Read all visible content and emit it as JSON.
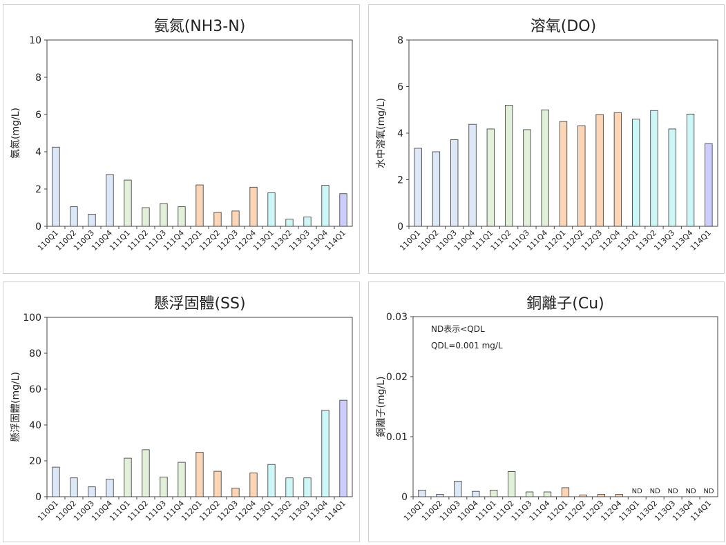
{
  "chart_data": [
    {
      "type": "bar",
      "title": "氨氮(NH3-N)",
      "ylabel": "氨氮(mg/L)",
      "ylim": [
        0,
        10
      ],
      "yticks": [
        "0",
        "2",
        "4",
        "6",
        "8",
        "10"
      ],
      "categories": [
        "110Q1",
        "110Q2",
        "110Q3",
        "110Q4",
        "111Q1",
        "111Q2",
        "111Q3",
        "111Q4",
        "112Q1",
        "112Q2",
        "112Q3",
        "112Q4",
        "113Q1",
        "113Q2",
        "113Q3",
        "113Q4",
        "114Q1"
      ],
      "values": [
        4.25,
        1.05,
        0.65,
        2.78,
        2.48,
        1.0,
        1.22,
        1.05,
        2.22,
        0.75,
        0.82,
        2.1,
        1.8,
        0.38,
        0.5,
        2.2,
        1.75
      ],
      "colors": {
        "110": "#dce8f7",
        "111": "#e2efd9",
        "112": "#fbd5b5",
        "113": "#cdf7f7",
        "114": "#ccccff"
      }
    },
    {
      "type": "bar",
      "title": "溶氧(DO)",
      "ylabel": "水中溶氧(mg/L)",
      "ylim": [
        0,
        8
      ],
      "yticks": [
        "0",
        "2",
        "4",
        "6",
        "8"
      ],
      "categories": [
        "110Q1",
        "110Q2",
        "110Q3",
        "110Q4",
        "111Q1",
        "111Q2",
        "111Q3",
        "111Q4",
        "112Q1",
        "112Q2",
        "112Q3",
        "112Q4",
        "113Q1",
        "113Q2",
        "113Q3",
        "113Q4",
        "114Q1"
      ],
      "values": [
        3.35,
        3.2,
        3.72,
        4.38,
        4.18,
        5.2,
        4.15,
        5.0,
        4.5,
        4.32,
        4.8,
        4.88,
        4.6,
        4.97,
        4.18,
        4.82,
        3.55
      ],
      "colors": {
        "110": "#dce8f7",
        "111": "#e2efd9",
        "112": "#fbd5b5",
        "113": "#cdf7f7",
        "114": "#ccccff"
      }
    },
    {
      "type": "bar",
      "title": "懸浮固體(SS)",
      "ylabel": "懸浮固體(mg/L)",
      "ylim": [
        0,
        100
      ],
      "yticks": [
        "0",
        "20",
        "40",
        "60",
        "80",
        "100"
      ],
      "categories": [
        "110Q1",
        "110Q2",
        "110Q3",
        "110Q4",
        "111Q1",
        "111Q2",
        "111Q3",
        "111Q4",
        "112Q1",
        "112Q2",
        "112Q3",
        "112Q4",
        "113Q1",
        "113Q2",
        "113Q3",
        "113Q4",
        "114Q1"
      ],
      "values": [
        16.5,
        10.5,
        5.5,
        9.8,
        21.5,
        26.2,
        11.0,
        19.2,
        24.8,
        14.2,
        4.8,
        13.2,
        18.0,
        10.5,
        10.5,
        48.2,
        53.8
      ],
      "colors": {
        "110": "#dce8f7",
        "111": "#e2efd9",
        "112": "#fbd5b5",
        "113": "#cdf7f7",
        "114": "#ccccff"
      }
    },
    {
      "type": "bar",
      "title": "銅離子(Cu)",
      "ylabel": "銅離子(mg/L)",
      "ylim": [
        0,
        0.03
      ],
      "yticks": [
        "0",
        "0.01",
        "0.02",
        "0.03"
      ],
      "categories": [
        "110Q1",
        "110Q2",
        "110Q3",
        "110Q4",
        "111Q1",
        "111Q2",
        "111Q3",
        "111Q4",
        "112Q1",
        "112Q2",
        "112Q3",
        "112Q4",
        "113Q1",
        "113Q2",
        "113Q3",
        "113Q4",
        "114Q1"
      ],
      "values": [
        0.0011,
        0.0004,
        0.0026,
        0.0009,
        0.0011,
        0.0042,
        0.0008,
        0.0008,
        0.0015,
        0.0003,
        0.0004,
        0.0004,
        null,
        null,
        null,
        null,
        null
      ],
      "value_labels": [
        "",
        "",
        "",
        "",
        "",
        "",
        "",
        "",
        "",
        "",
        "",
        "",
        "ND",
        "ND",
        "ND",
        "ND",
        "ND"
      ],
      "annotations": [
        "ND表示<QDL",
        "QDL=0.001 mg/L"
      ],
      "colors": {
        "110": "#dce8f7",
        "111": "#e2efd9",
        "112": "#fbd5b5",
        "113": "#cdf7f7",
        "114": "#ccccff"
      }
    }
  ]
}
